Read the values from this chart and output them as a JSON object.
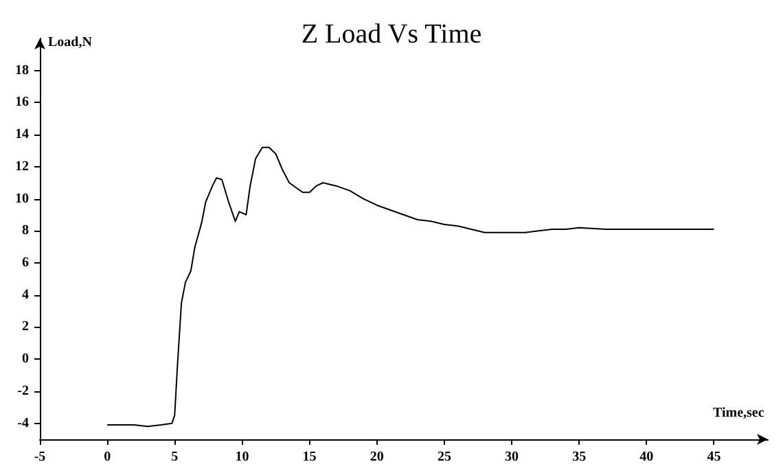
{
  "chart_data": {
    "type": "line",
    "title": "Z Load Vs Time",
    "xlabel": "Time,sec",
    "ylabel": "Load,N",
    "x": [
      0,
      1,
      2,
      3,
      4,
      4.8,
      5.0,
      5.2,
      5.5,
      5.8,
      6.2,
      6.5,
      7.0,
      7.3,
      7.8,
      8.1,
      8.5,
      9.0,
      9.5,
      9.8,
      10.3,
      10.6,
      11.0,
      11.5,
      12.0,
      12.5,
      13.0,
      13.5,
      14,
      14.5,
      15,
      15.5,
      16,
      17,
      18,
      19,
      20,
      21,
      22,
      23,
      24,
      25,
      26,
      27,
      28,
      29,
      30,
      31,
      32,
      33,
      34,
      35,
      37,
      39,
      41,
      43,
      45
    ],
    "series": [
      {
        "color": "#000000",
        "values": [
          -4.1,
          -4.1,
          -4.1,
          -4.2,
          -4.1,
          -4.0,
          -3.5,
          -0.5,
          3.5,
          4.8,
          5.5,
          7.0,
          8.5,
          9.8,
          10.8,
          11.3,
          11.2,
          9.8,
          8.6,
          9.2,
          9.0,
          10.8,
          12.5,
          13.2,
          13.2,
          12.8,
          11.8,
          11.0,
          10.7,
          10.4,
          10.4,
          10.8,
          11.0,
          10.8,
          10.5,
          10.0,
          9.6,
          9.3,
          9.0,
          8.7,
          8.6,
          8.4,
          8.3,
          8.1,
          7.9,
          7.9,
          7.9,
          7.9,
          8.0,
          8.1,
          8.1,
          8.2,
          8.1,
          8.1,
          8.1,
          8.1,
          8.1
        ]
      }
    ],
    "xlim": [
      -5,
      49
    ],
    "xticks": [
      -5,
      0,
      5,
      10,
      15,
      20,
      25,
      30,
      35,
      40,
      45
    ],
    "ylim": [
      -5,
      20
    ],
    "yticks": [
      -4,
      -2,
      0,
      2,
      4,
      6,
      8,
      10,
      12,
      14,
      16,
      18
    ],
    "grid": false,
    "marker": "none",
    "line_style": "solid"
  }
}
